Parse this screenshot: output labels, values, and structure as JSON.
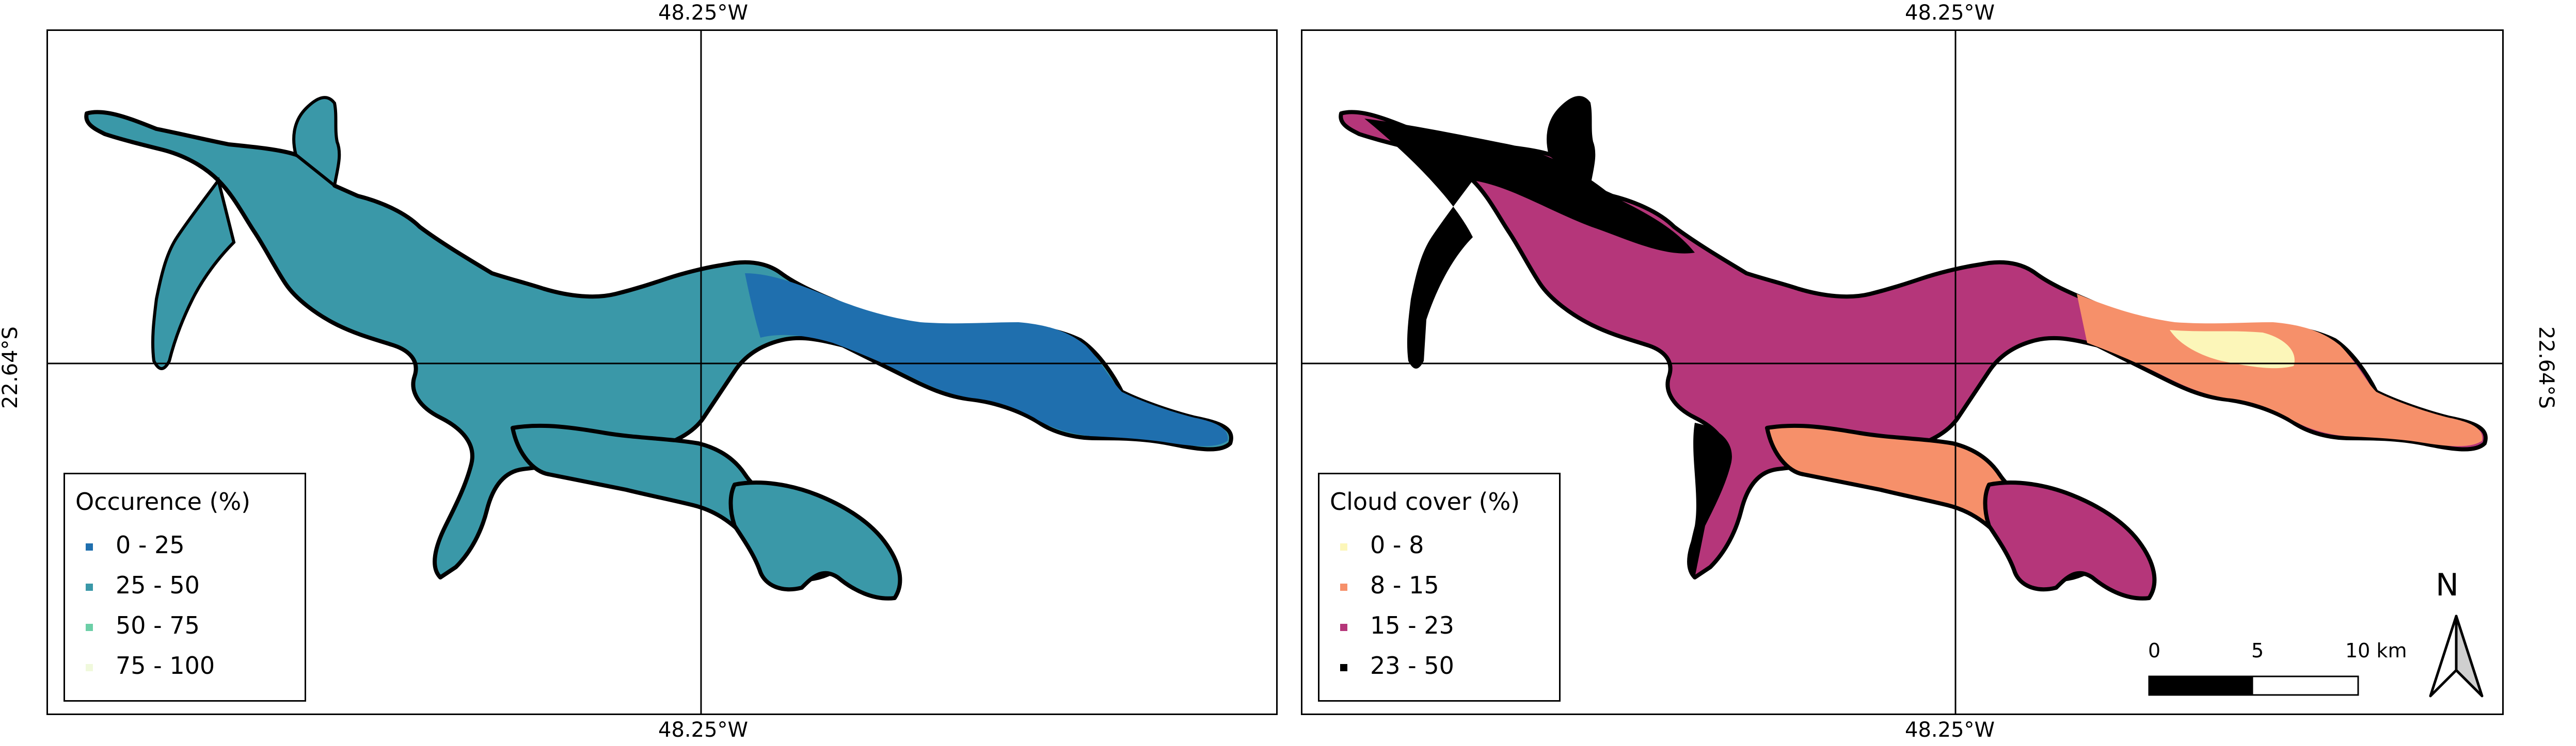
{
  "coordinates": {
    "longitude_label": "48.25°W",
    "latitude_label": "22.64°S"
  },
  "panels": [
    {
      "legend_title": "Occurence (%)",
      "classes": [
        {
          "label": "0 - 25",
          "color": "#1f6fae"
        },
        {
          "label": "25 - 50",
          "color": "#3a98a8"
        },
        {
          "label": "50 - 75",
          "color": "#6ccfa7"
        },
        {
          "label": "75 - 100",
          "color": "#f0f9dc"
        }
      ],
      "fill_main": "#3a98a8",
      "fill_east": "#1f6fae",
      "fill_edge": "#6ccfa7"
    },
    {
      "legend_title": "Cloud cover (%)",
      "classes": [
        {
          "label": "0 - 8",
          "color": "#fcf6b9"
        },
        {
          "label": "8 - 15",
          "color": "#f6906a"
        },
        {
          "label": "15 - 23",
          "color": "#b5367a"
        },
        {
          "label": "23 - 50",
          "color": "#000000"
        }
      ],
      "fill_main": "#b5367a",
      "fill_east": "#f6906a",
      "fill_edge": "#000000"
    }
  ],
  "scalebar": {
    "ticks": [
      "0",
      "5",
      "10 km"
    ]
  },
  "north_arrow": {
    "label": "N"
  }
}
